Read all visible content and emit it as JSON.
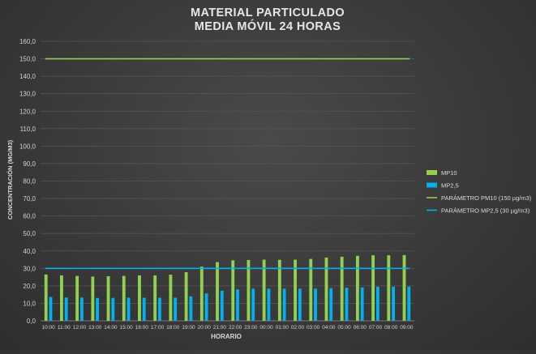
{
  "chart_data": {
    "type": "bar",
    "title_line1": "MATERIAL PARTICULADO",
    "title_line2": "MEDIA MÓVIL 24 HORAS",
    "xlabel": "HORARIO",
    "ylabel": "CONCENTRACIÓN (MG/M3)",
    "ylim": [
      0,
      160
    ],
    "yticks": [
      "0,0",
      "10,0",
      "20,0",
      "30,0",
      "40,0",
      "50,0",
      "60,0",
      "70,0",
      "80,0",
      "90,0",
      "100,0",
      "110,0",
      "120,0",
      "130,0",
      "140,0",
      "150,0",
      "160,0"
    ],
    "grid": true,
    "legend_position": "right",
    "categories": [
      "10:00",
      "11:00",
      "12:00",
      "13:00",
      "14:00",
      "15:00",
      "16:00",
      "17:00",
      "18:00",
      "19:00",
      "20:00",
      "21:00",
      "22:00",
      "23:00",
      "00:00",
      "01:00",
      "02:00",
      "03:00",
      "04:00",
      "05:00",
      "06:00",
      "07:00",
      "08:00",
      "09:00"
    ],
    "series": [
      {
        "name": "MP10",
        "kind": "bar",
        "color": "#92d050",
        "values": [
          26.5,
          26.0,
          25.7,
          25.3,
          25.5,
          25.7,
          26.0,
          26.0,
          26.4,
          27.8,
          31.0,
          33.6,
          34.6,
          34.8,
          35.0,
          34.9,
          35.0,
          35.4,
          36.2,
          36.7,
          37.2,
          37.5,
          37.5,
          37.6
        ]
      },
      {
        "name": "MP2,5",
        "kind": "bar",
        "color": "#00b0f0",
        "values": [
          13.6,
          13.3,
          13.3,
          13.1,
          13.1,
          13.3,
          13.2,
          13.2,
          13.2,
          14.0,
          15.7,
          17.2,
          18.0,
          18.4,
          18.4,
          18.4,
          18.4,
          18.4,
          18.7,
          18.9,
          19.1,
          19.5,
          19.5,
          19.6
        ]
      },
      {
        "name": "PARÁMETRO PM10 (150 µg/m3)",
        "kind": "line",
        "color": "#92d050",
        "value": 150
      },
      {
        "name": "PARÁMETRO MP2,5 (30 µg/m3)",
        "kind": "line",
        "color": "#00b0f0",
        "value": 30
      }
    ]
  }
}
